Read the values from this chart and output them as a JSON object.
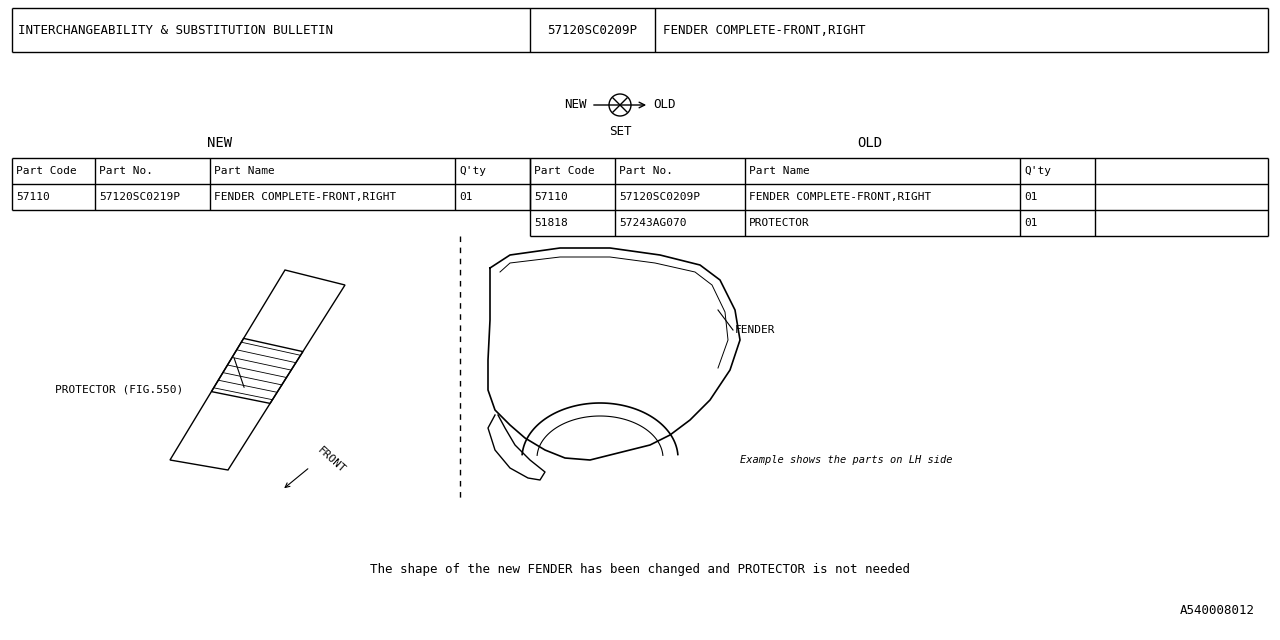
{
  "header_left": "INTERCHANGEABILITY & SUBSTITUTION BULLETIN",
  "header_part_no": "57120SC0209P",
  "header_desc": "FENDER COMPLETE-FRONT,RIGHT",
  "new_label": "NEW",
  "old_label": "OLD",
  "set_label": "SET",
  "new_rows": [
    [
      "57110",
      "57120SC0219P",
      "FENDER COMPLETE-FRONT,RIGHT",
      "01"
    ]
  ],
  "old_rows": [
    [
      "57110",
      "57120SC0209P",
      "FENDER COMPLETE-FRONT,RIGHT",
      "01"
    ],
    [
      "51818",
      "57243AG070",
      "PROTECTOR",
      "01"
    ]
  ],
  "label_protector": "PROTECTOR (FIG.550)",
  "label_fender": "FENDER",
  "label_front": "FRONT",
  "note_example": "Example shows the parts on LH side",
  "footer_text": "The shape of the new FENDER has been changed and PROTECTOR is not needed",
  "diagram_code": "A540008012",
  "bg_color": "#ffffff",
  "line_color": "#000000",
  "text_color": "#000000"
}
